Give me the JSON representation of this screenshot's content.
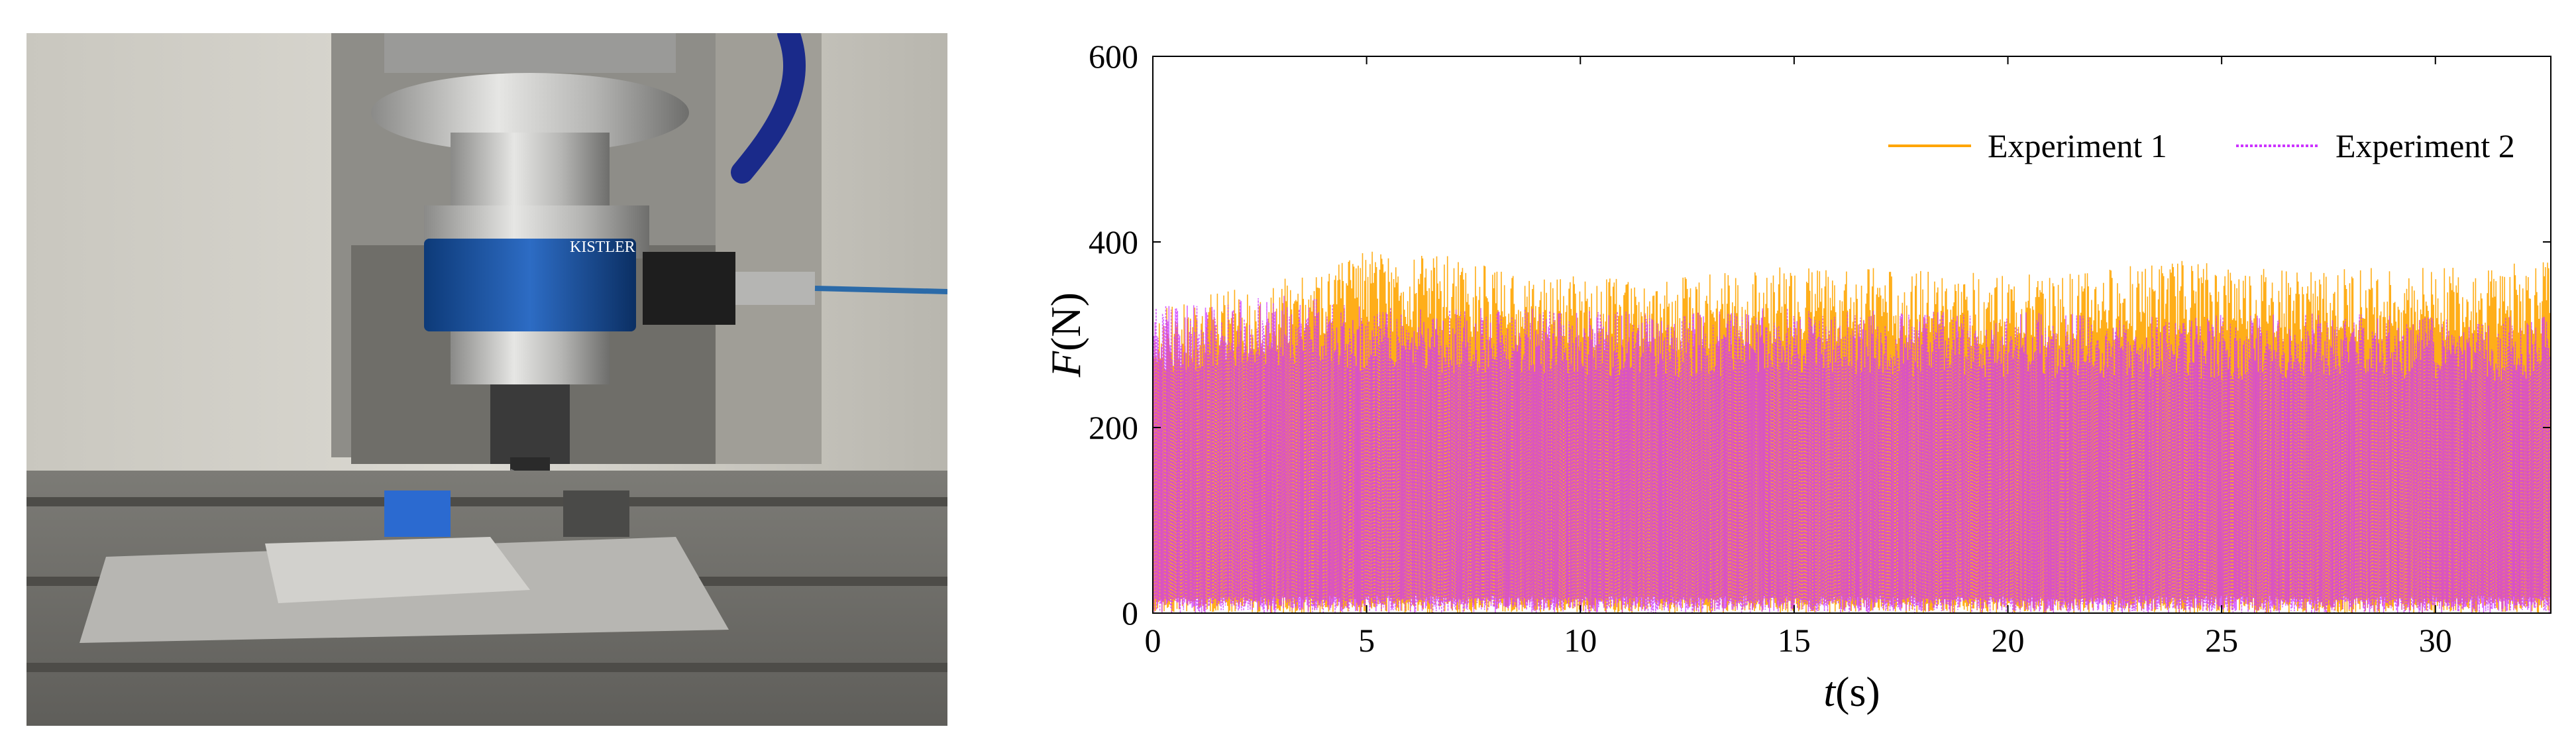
{
  "photo": {
    "sensor_brand": "KISTLER"
  },
  "chart_data": {
    "type": "line",
    "xlabel": "t(s)",
    "ylabel": "F(N)",
    "xlim": [
      0,
      32.7
    ],
    "ylim": [
      0,
      600
    ],
    "xticks": [
      0,
      5,
      10,
      15,
      20,
      25,
      30
    ],
    "yticks": [
      0,
      200,
      400,
      600
    ],
    "grid": false,
    "legend_position": "top-right",
    "series": [
      {
        "name": "Experiment 1",
        "color": "#FFA500",
        "line_style": "solid",
        "description_values": {
          "baseline": 0,
          "peak_envelope": [
            [
              0,
              330
            ],
            [
              2,
              350
            ],
            [
              4,
              370
            ],
            [
              5,
              390
            ],
            [
              7,
              385
            ],
            [
              9,
              365
            ],
            [
              12,
              360
            ],
            [
              15,
              375
            ],
            [
              18,
              370
            ],
            [
              21,
              365
            ],
            [
              24,
              380
            ],
            [
              27,
              370
            ],
            [
              30,
              375
            ],
            [
              32.7,
              380
            ]
          ]
        }
      },
      {
        "name": "Experiment 2",
        "color": "#CC33FF",
        "line_style": "dotted",
        "description_values": {
          "baseline": 0,
          "peak_envelope": [
            [
              0,
              330
            ],
            [
              2,
              340
            ],
            [
              4,
              345
            ],
            [
              5,
              330
            ],
            [
              9,
              330
            ],
            [
              12,
              325
            ],
            [
              15,
              330
            ],
            [
              18,
              325
            ],
            [
              21,
              325
            ],
            [
              24,
              320
            ],
            [
              27,
              325
            ],
            [
              30,
              320
            ],
            [
              32.7,
              320
            ]
          ]
        }
      }
    ]
  }
}
